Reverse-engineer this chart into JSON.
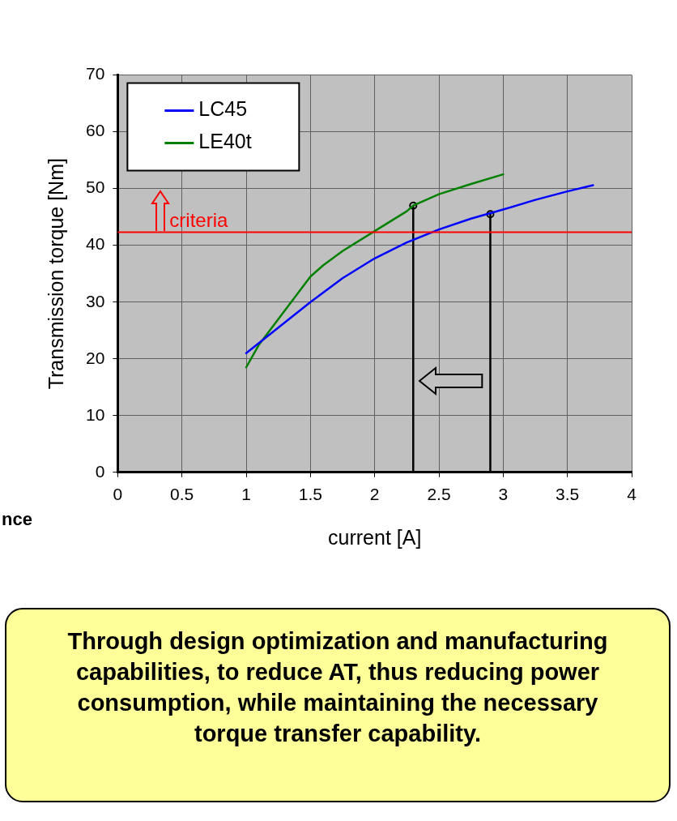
{
  "chart_data": {
    "type": "line",
    "xlabel": "current [A]",
    "ylabel": "Transmission torque [Nm]",
    "xlim": [
      0,
      4
    ],
    "xticks": [
      0,
      0.5,
      1,
      1.5,
      2,
      2.5,
      3,
      3.5,
      4
    ],
    "ylim": [
      0,
      70
    ],
    "yticks": [
      0,
      10,
      20,
      30,
      40,
      50,
      60,
      70
    ],
    "grid": true,
    "legend": "top left",
    "marker": "none",
    "line_style": "solid",
    "series": [
      {
        "name": "LC45",
        "color": "#0000ff",
        "x": [
          1,
          1.25,
          1.5,
          1.75,
          2,
          2.25,
          2.5,
          2.75,
          3,
          3.25,
          3.5,
          3.7
        ],
        "values": [
          21,
          25.5,
          30,
          34.2,
          37.7,
          40.5,
          42.8,
          44.7,
          46.3,
          48,
          49.5,
          50.6
        ]
      },
      {
        "name": "LE40t",
        "color": "#008000",
        "x": [
          1,
          1.1,
          1.25,
          1.4,
          1.5,
          1.6,
          1.75,
          2,
          2.25,
          2.3,
          2.5,
          2.75,
          3
        ],
        "values": [
          18.5,
          22.5,
          27,
          31.5,
          34.5,
          36.5,
          39,
          42.5,
          46,
          47,
          49,
          50.8,
          52.5
        ]
      },
      {
        "type": "line",
        "color": "#000000",
        "x": [
          2.3,
          2.3
        ],
        "values": [
          0,
          47
        ]
      },
      {
        "type": "line",
        "color": "#000000",
        "x": [
          2.9,
          2.9
        ],
        "values": [
          0,
          45.5
        ]
      },
      {
        "type": "scatter",
        "color": "#000000",
        "marker": "circle",
        "x": [
          2.3,
          2.9
        ],
        "values": [
          47,
          45.5
        ]
      }
    ],
    "ref_lines": [
      {
        "axis": "y",
        "value": 42.3,
        "label": "criteria",
        "color": "#ff0000"
      }
    ],
    "annotations": [
      "nce",
      "Through design optimization and manufacturing capabilities, to reduce AT, thus reducing power consumption, while maintaining the necessary torque transfer capability."
    ]
  }
}
